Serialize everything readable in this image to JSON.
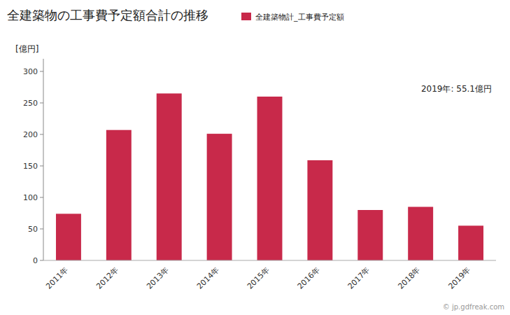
{
  "chart_data": {
    "type": "bar",
    "title": "全建築物の工事費予定額合計の推移",
    "ylabel": "[億円]",
    "annotations": [
      "2019年: 55.1億円",
      "© jp.gdfreak.com"
    ],
    "categories": [
      "2011年",
      "2012年",
      "2013年",
      "2014年",
      "2015年",
      "2016年",
      "2017年",
      "2018年",
      "2019年"
    ],
    "series": [
      {
        "name": "全建築物計_工事費予定額",
        "color": "#c8294a",
        "values": [
          74,
          207,
          265,
          201,
          260,
          159,
          80,
          85,
          55.1
        ]
      }
    ],
    "ylim": [
      0,
      320
    ],
    "yticks": [
      0,
      50,
      100,
      150,
      200,
      250,
      300
    ],
    "grid": false,
    "legend": "top"
  }
}
